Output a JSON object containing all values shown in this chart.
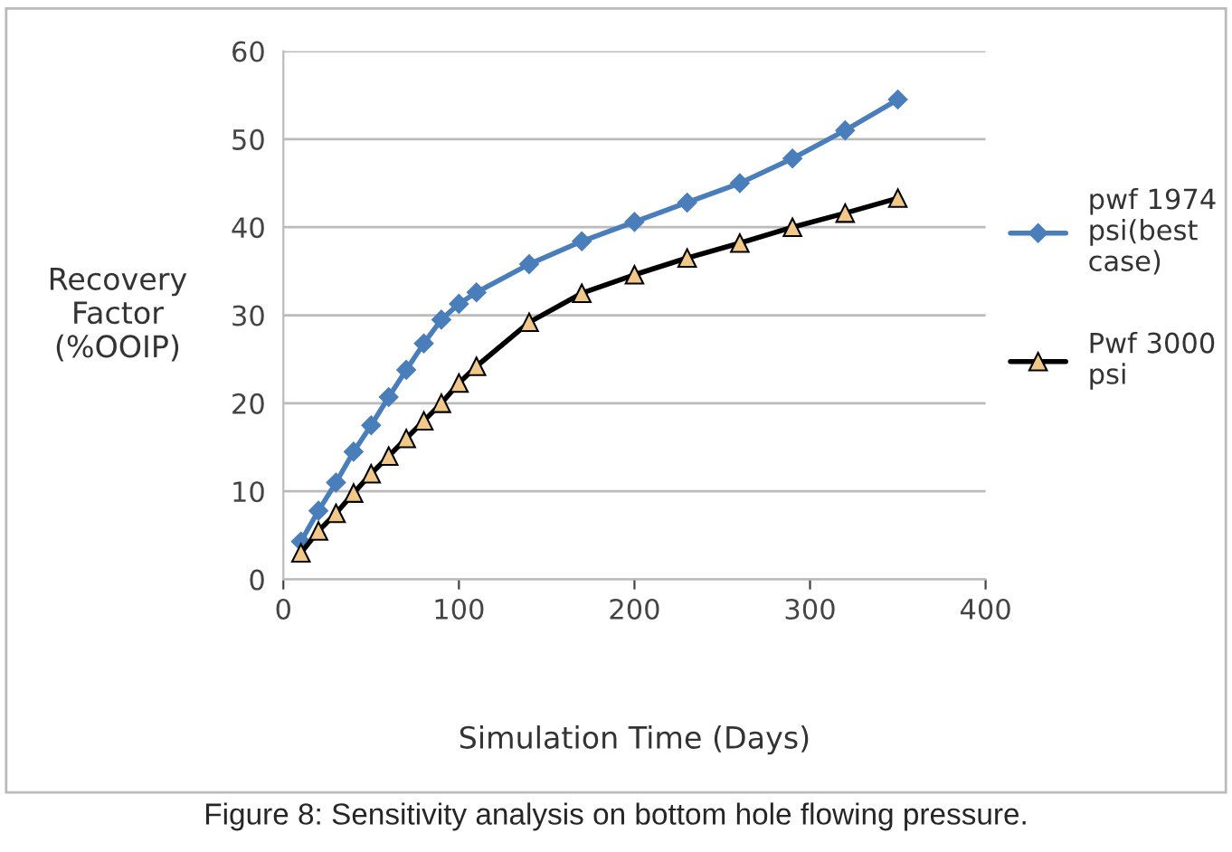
{
  "chart_data": {
    "type": "line",
    "xlabel": "Simulation Time (Days)",
    "ylabel": "Recovery\nFactor\n(%OOIP)",
    "annotations": [
      "Figure 8: Sensitivity analysis on bottom hole flowing pressure."
    ],
    "x": [
      10,
      20,
      30,
      40,
      50,
      60,
      70,
      80,
      90,
      100,
      110,
      140,
      170,
      200,
      230,
      260,
      290,
      320,
      350
    ],
    "series": [
      {
        "name": "pwf 1974\npsi(best\ncase)",
        "color": "#4a7ebb",
        "marker": "diamond",
        "values": [
          4.3,
          7.8,
          11,
          14.5,
          17.5,
          20.7,
          23.8,
          26.8,
          29.5,
          31.3,
          32.6,
          35.8,
          38.4,
          40.6,
          42.8,
          45,
          47.8,
          51,
          54.5
        ]
      },
      {
        "name": "Pwf 3000\npsi",
        "color": "#000000",
        "marker": "triangle",
        "values": [
          3,
          5.5,
          7.5,
          9.8,
          12,
          14,
          16,
          18,
          20,
          22.3,
          24.2,
          29.2,
          32.5,
          34.6,
          36.5,
          38.2,
          40,
          41.6,
          43.3
        ]
      }
    ],
    "xlim": [
      0,
      400
    ],
    "xticks": [
      0,
      100,
      200,
      300,
      400
    ],
    "ylim": [
      0,
      60
    ],
    "yticks": [
      0,
      10,
      20,
      30,
      40,
      50,
      60
    ],
    "grid": "y",
    "legend": "right"
  }
}
